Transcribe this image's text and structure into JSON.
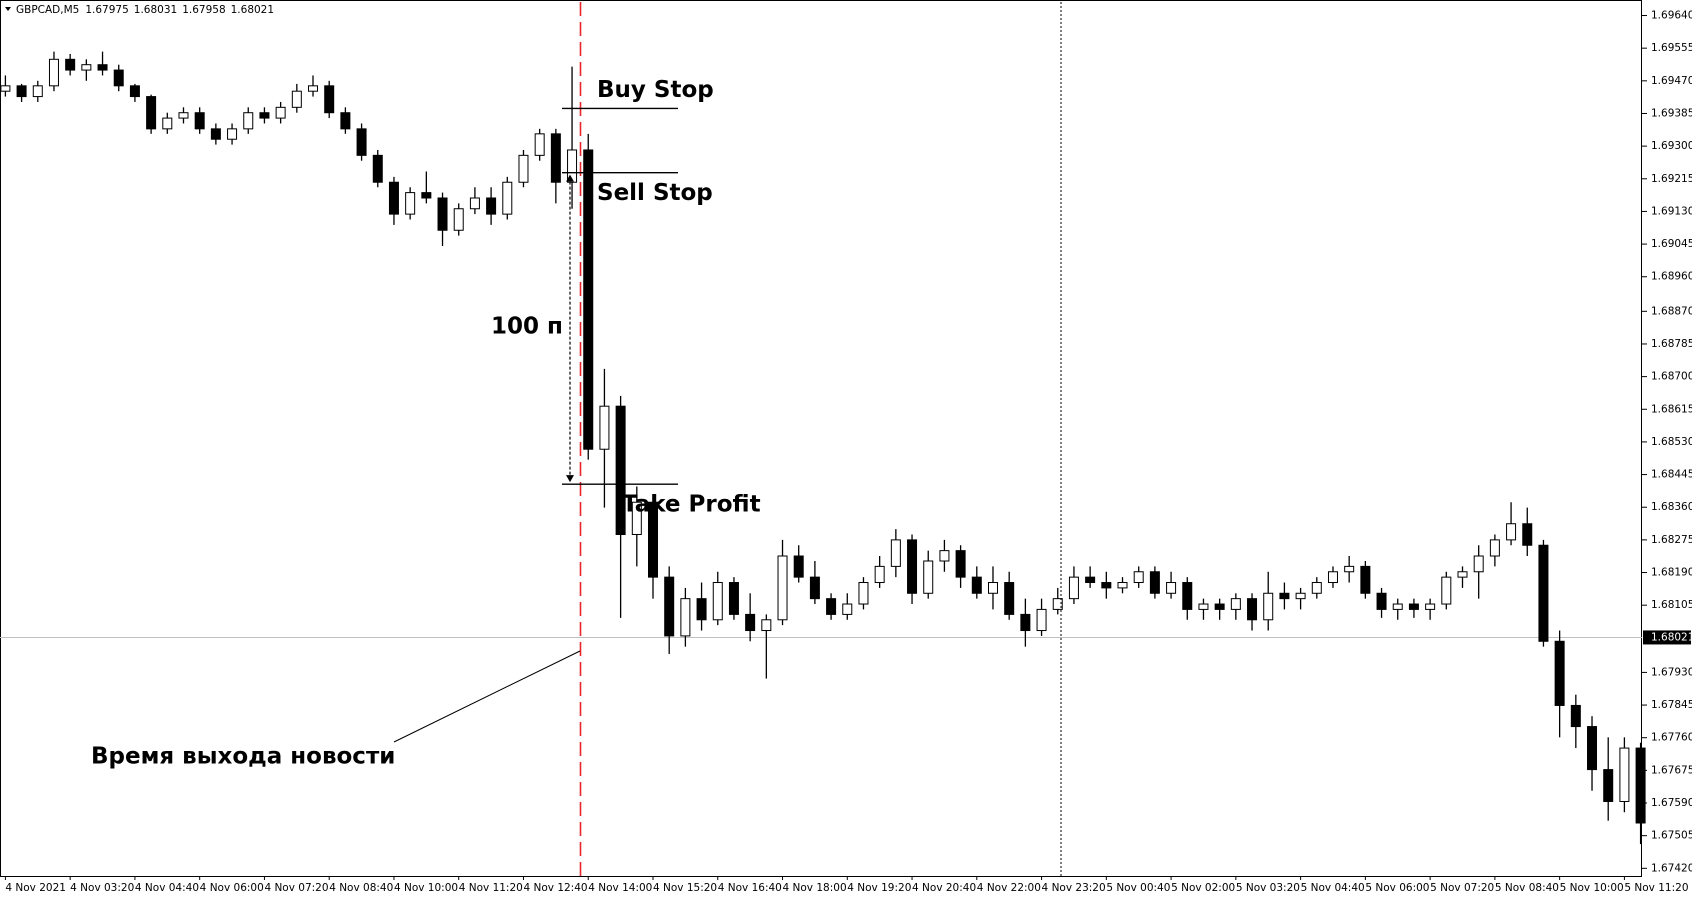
{
  "chart_data": {
    "type": "candlestick",
    "symbol": "GBPCAD,M5",
    "header_values": [
      1.67975,
      1.68031,
      1.67958,
      1.68021
    ],
    "categories": [
      "4 Nov 2021",
      null,
      null,
      null,
      "4 Nov 03:20",
      null,
      null,
      null,
      "4 Nov 04:40",
      null,
      null,
      null,
      "4 Nov 06:00",
      null,
      null,
      null,
      "4 Nov 07:20",
      null,
      null,
      null,
      "4 Nov 08:40",
      null,
      null,
      null,
      "4 Nov 10:00",
      null,
      null,
      null,
      "4 Nov 11:20",
      null,
      null,
      null,
      "4 Nov 12:40",
      null,
      null,
      null,
      "4 Nov 14:00",
      null,
      null,
      null,
      "4 Nov 15:20",
      null,
      null,
      null,
      "4 Nov 16:40",
      null,
      null,
      null,
      "4 Nov 18:00",
      null,
      null,
      null,
      "4 Nov 19:20",
      null,
      null,
      null,
      "4 Nov 20:40",
      null,
      null,
      null,
      "4 Nov 22:00",
      null,
      null,
      null,
      "4 Nov 23:20",
      null,
      null,
      null,
      "5 Nov 00:40",
      null,
      null,
      null,
      "5 Nov 02:00",
      null,
      null,
      null,
      "5 Nov 03:20",
      null,
      null,
      null,
      "5 Nov 04:40",
      null,
      null,
      null,
      "5 Nov 06:00",
      null,
      null,
      null,
      "5 Nov 07:20",
      null,
      null,
      null,
      "5 Nov 08:40",
      null,
      null,
      null,
      "5 Nov 10:00",
      null,
      null,
      null,
      "5 Nov 11:20",
      null
    ],
    "open": [
      1.69443,
      1.69457,
      1.69429,
      1.69457,
      1.69526,
      1.69498,
      1.69512,
      1.69498,
      1.69457,
      1.69429,
      1.69345,
      1.69373,
      1.69387,
      1.69345,
      1.69318,
      1.69345,
      1.69387,
      1.69373,
      1.69401,
      1.69443,
      1.69457,
      1.69387,
      1.69345,
      1.69276,
      1.69206,
      1.69123,
      1.69179,
      1.69165,
      1.69081,
      1.69137,
      1.69165,
      1.69123,
      1.69206,
      1.69276,
      1.69332,
      1.69206,
      1.6929,
      1.68511,
      1.68623,
      1.68289,
      1.68373,
      1.68178,
      1.68025,
      1.68122,
      1.68067,
      1.68164,
      1.68081,
      1.68039,
      1.68067,
      1.68233,
      1.68178,
      1.68122,
      1.68081,
      1.68108,
      1.68164,
      1.68206,
      1.68275,
      1.68136,
      1.6822,
      1.68247,
      1.68178,
      1.68136,
      1.68164,
      1.68081,
      1.68039,
      1.68094,
      1.68122,
      1.68178,
      1.68164,
      1.6815,
      1.68164,
      1.68192,
      1.68136,
      1.68164,
      1.68094,
      1.68108,
      1.68094,
      1.68122,
      1.68067,
      1.68136,
      1.68122,
      1.68136,
      1.68164,
      1.68192,
      1.68206,
      1.68136,
      1.68094,
      1.68108,
      1.68094,
      1.68108,
      1.68178,
      1.68192,
      1.68233,
      1.68275,
      1.68317,
      1.68261,
      1.68011,
      1.67844,
      1.67789,
      1.67677,
      1.67594,
      1.67733
    ],
    "high": [
      1.69484,
      1.69462,
      1.6947,
      1.69546,
      1.6954,
      1.69526,
      1.69546,
      1.69512,
      1.69462,
      1.69434,
      1.69387,
      1.69401,
      1.69401,
      1.69359,
      1.69359,
      1.69401,
      1.69401,
      1.69415,
      1.69462,
      1.69484,
      1.6947,
      1.69401,
      1.69359,
      1.6929,
      1.6922,
      1.69193,
      1.69234,
      1.69179,
      1.69151,
      1.69193,
      1.69193,
      1.6922,
      1.6929,
      1.69345,
      1.69345,
      1.69507,
      1.69332,
      1.6872,
      1.6865,
      1.68414,
      1.68373,
      1.68206,
      1.6815,
      1.68164,
      1.68192,
      1.68178,
      1.68136,
      1.68081,
      1.68275,
      1.68261,
      1.6822,
      1.68136,
      1.68136,
      1.68178,
      1.68233,
      1.68303,
      1.68289,
      1.68247,
      1.68275,
      1.68261,
      1.68206,
      1.68206,
      1.68192,
      1.68122,
      1.68122,
      1.6815,
      1.68206,
      1.68206,
      1.68192,
      1.68178,
      1.68206,
      1.68206,
      1.68192,
      1.68178,
      1.68122,
      1.68122,
      1.68136,
      1.68136,
      1.68192,
      1.68164,
      1.6815,
      1.68178,
      1.68206,
      1.68233,
      1.6822,
      1.6815,
      1.68122,
      1.68122,
      1.68122,
      1.68192,
      1.68206,
      1.68261,
      1.68289,
      1.68373,
      1.68359,
      1.68275,
      1.68039,
      1.67872,
      1.67816,
      1.67761,
      1.67761,
      1.67747
    ],
    "low": [
      1.69429,
      1.69415,
      1.69415,
      1.69443,
      1.69484,
      1.6947,
      1.69484,
      1.69443,
      1.69415,
      1.69332,
      1.69332,
      1.69359,
      1.69332,
      1.69304,
      1.69304,
      1.69332,
      1.69359,
      1.69359,
      1.69387,
      1.69429,
      1.69373,
      1.69332,
      1.69262,
      1.69193,
      1.69095,
      1.69109,
      1.69151,
      1.6904,
      1.69067,
      1.69123,
      1.69095,
      1.69109,
      1.69193,
      1.69262,
      1.69151,
      1.69137,
      1.68484,
      1.68359,
      1.68072,
      1.68206,
      1.68122,
      1.67978,
      1.67997,
      1.68039,
      1.68053,
      1.68067,
      1.68011,
      1.67914,
      1.68053,
      1.68164,
      1.68108,
      1.68067,
      1.68067,
      1.68094,
      1.6815,
      1.68178,
      1.68108,
      1.68122,
      1.68192,
      1.6815,
      1.68122,
      1.68094,
      1.68067,
      1.67997,
      1.68025,
      1.68081,
      1.68108,
      1.6815,
      1.68122,
      1.68136,
      1.6815,
      1.68122,
      1.68122,
      1.68067,
      1.68067,
      1.68067,
      1.68067,
      1.68039,
      1.68039,
      1.68094,
      1.68094,
      1.68122,
      1.6815,
      1.68164,
      1.68122,
      1.68072,
      1.68067,
      1.68072,
      1.68067,
      1.68094,
      1.6815,
      1.68122,
      1.68206,
      1.68261,
      1.68233,
      1.67997,
      1.67761,
      1.67733,
      1.67622,
      1.67544,
      1.67566,
      1.67483
    ],
    "close": [
      1.69457,
      1.69429,
      1.69457,
      1.69526,
      1.69498,
      1.69512,
      1.69498,
      1.69457,
      1.69429,
      1.69345,
      1.69373,
      1.69387,
      1.69345,
      1.69318,
      1.69345,
      1.69387,
      1.69373,
      1.69401,
      1.69443,
      1.69457,
      1.69387,
      1.69345,
      1.69276,
      1.69206,
      1.69123,
      1.69179,
      1.69165,
      1.69081,
      1.69137,
      1.69165,
      1.69123,
      1.69206,
      1.69276,
      1.69332,
      1.69206,
      1.6929,
      1.68511,
      1.68623,
      1.68289,
      1.68373,
      1.68178,
      1.68025,
      1.68122,
      1.68067,
      1.68164,
      1.68081,
      1.68039,
      1.68067,
      1.68233,
      1.68178,
      1.68122,
      1.68081,
      1.68108,
      1.68164,
      1.68206,
      1.68275,
      1.68136,
      1.6822,
      1.68247,
      1.68178,
      1.68136,
      1.68164,
      1.68081,
      1.68039,
      1.68094,
      1.68122,
      1.68178,
      1.68164,
      1.6815,
      1.68164,
      1.68192,
      1.68136,
      1.68164,
      1.68094,
      1.68108,
      1.68094,
      1.68122,
      1.68067,
      1.68136,
      1.68122,
      1.68136,
      1.68164,
      1.68192,
      1.68206,
      1.68136,
      1.68094,
      1.68108,
      1.68094,
      1.68108,
      1.68178,
      1.68192,
      1.68233,
      1.68275,
      1.68317,
      1.68261,
      1.68011,
      1.67844,
      1.67789,
      1.67677,
      1.67594,
      1.67733,
      1.67538
    ],
    "ylim": [
      1.674,
      1.6967
    ],
    "yticks": [
      {
        "value": 1.6964,
        "label": "1.69640"
      },
      1.69555,
      {
        "value": 1.6947,
        "label": "1.69470"
      },
      1.69385,
      {
        "value": 1.693,
        "label": "1.69300"
      },
      1.69215,
      {
        "value": 1.6913,
        "label": "1.69130"
      },
      1.69045,
      {
        "value": 1.6896,
        "label": "1.68960"
      },
      {
        "value": 1.6887,
        "label": "1.68870"
      },
      1.68785,
      {
        "value": 1.687,
        "label": "1.68700"
      },
      1.68615,
      {
        "value": 1.6853,
        "label": "1.68530"
      },
      1.68445,
      {
        "value": 1.6836,
        "label": "1.68360"
      },
      1.68275,
      {
        "value": 1.6819,
        "label": "1.68190"
      },
      1.68105,
      {
        "value": 1.6793,
        "label": "1.67930"
      },
      1.67845,
      {
        "value": 1.6776,
        "label": "1.67760"
      },
      1.67675,
      {
        "value": 1.6759,
        "label": "1.67590"
      },
      1.67505,
      {
        "value": 1.6742,
        "label": "1.67420"
      }
    ],
    "last_price": 1.68021,
    "levels": [
      {
        "name": "Buy Stop",
        "value": 1.69398
      },
      {
        "name": "Sell Stop",
        "value": 1.69231
      },
      {
        "name": "Take Profit",
        "value": 1.6842
      }
    ],
    "distance_label": "100 п",
    "news_label": "Время выхода новости",
    "up_color": "#ffffff",
    "down_color": "#000000"
  }
}
